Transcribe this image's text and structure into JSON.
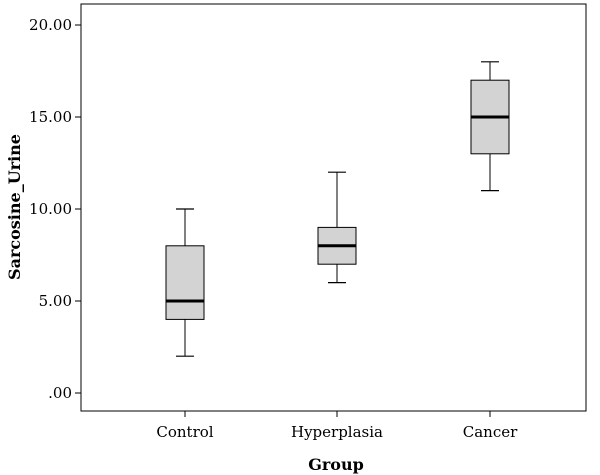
{
  "chart_data": {
    "type": "boxplot",
    "xlabel": "Group",
    "ylabel": "Sarcosine_Urine",
    "ylim": [
      0,
      20
    ],
    "yticks": [
      ".00",
      "5.00",
      "10.00",
      "15.00",
      "20.00"
    ],
    "ytick_values": [
      0,
      5,
      10,
      15,
      20
    ],
    "categories": [
      "Control",
      "Hyperplasia",
      "Cancer"
    ],
    "boxes": [
      {
        "category": "Control",
        "min": 2,
        "q1": 4,
        "median": 5,
        "q3": 8,
        "max": 10
      },
      {
        "category": "Hyperplasia",
        "min": 6,
        "q1": 7,
        "median": 8,
        "q3": 9,
        "max": 12
      },
      {
        "category": "Cancer",
        "min": 11,
        "q1": 13,
        "median": 15,
        "q3": 17,
        "max": 18
      }
    ],
    "grid": false,
    "legend": "none",
    "colors": {
      "box_fill": "#d3d3d3",
      "stroke": "#000000"
    }
  }
}
